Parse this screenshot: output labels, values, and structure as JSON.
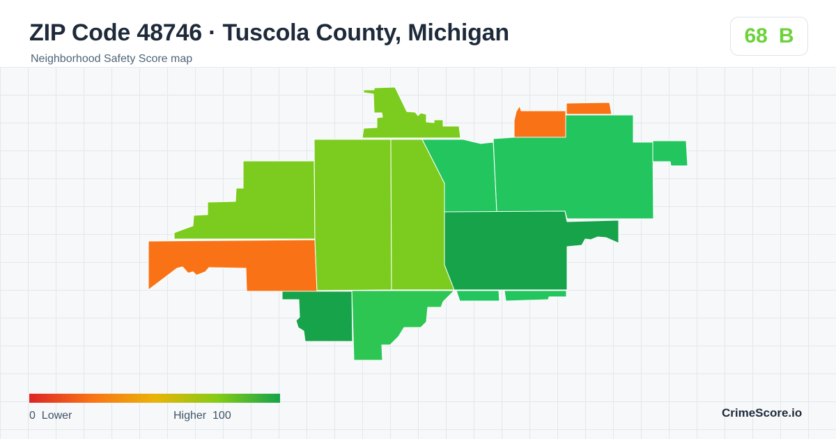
{
  "header": {
    "title": "ZIP Code 48746 · Tuscola County, Michigan",
    "subtitle": "Neighborhood Safety Score map"
  },
  "score": {
    "value": "68",
    "grade": "B",
    "color": "#6bd23a"
  },
  "legend": {
    "min_label": "0  Lower",
    "max_label": "Higher  100",
    "gradient_colors": [
      "#dc2626",
      "#f97316",
      "#eab308",
      "#84cc16",
      "#16a34a"
    ]
  },
  "colors": {
    "orange": "#f97316",
    "yellow_green": "#7bcc1f",
    "green": "#22c55e",
    "dark_green": "#16a34a"
  },
  "brand": "CrimeScore.io"
}
